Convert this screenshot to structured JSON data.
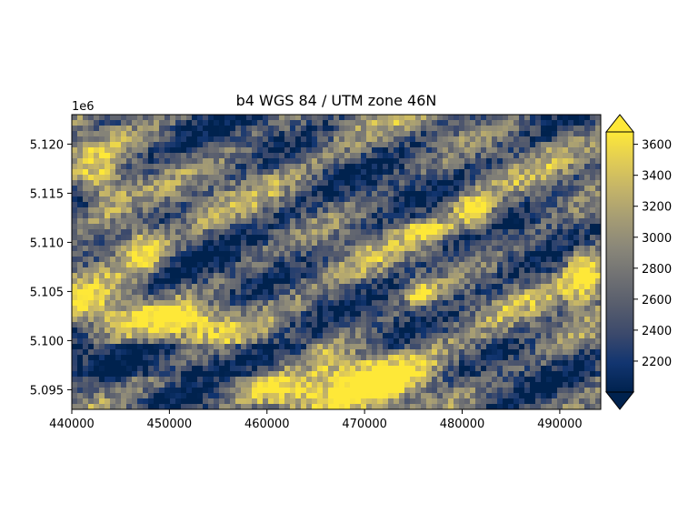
{
  "chart_data": {
    "type": "heatmap",
    "title": "b4 WGS 84 / UTM zone 46N",
    "xlabel": "",
    "ylabel": "",
    "xlim": [
      440000,
      494200
    ],
    "ylim": [
      5093000,
      5123000
    ],
    "x_ticks": [
      440000,
      450000,
      460000,
      470000,
      480000,
      490000
    ],
    "x_tick_labels": [
      "440000",
      "450000",
      "460000",
      "470000",
      "480000",
      "490000"
    ],
    "y_ticks": [
      5095000,
      5100000,
      5105000,
      5110000,
      5115000,
      5120000
    ],
    "y_tick_labels": [
      "5.095",
      "5.100",
      "5.105",
      "5.110",
      "5.115",
      "5.120"
    ],
    "y_offset_label": "1e6",
    "colormap": "cividis",
    "colormap_colors": [
      "#00224e",
      "#123570",
      "#3b496c",
      "#575d6d",
      "#707173",
      "#8a8779",
      "#a59c74",
      "#c3b369",
      "#e1cc55",
      "#fee838"
    ],
    "color_range": [
      2000,
      3680
    ],
    "colorbar": {
      "ticks": [
        2200,
        2400,
        2600,
        2800,
        3000,
        3200,
        3400,
        3600
      ],
      "tick_labels": [
        "2200",
        "2400",
        "2600",
        "2800",
        "3000",
        "3200",
        "3400",
        "3600"
      ],
      "extend": "both"
    },
    "grid": false
  }
}
